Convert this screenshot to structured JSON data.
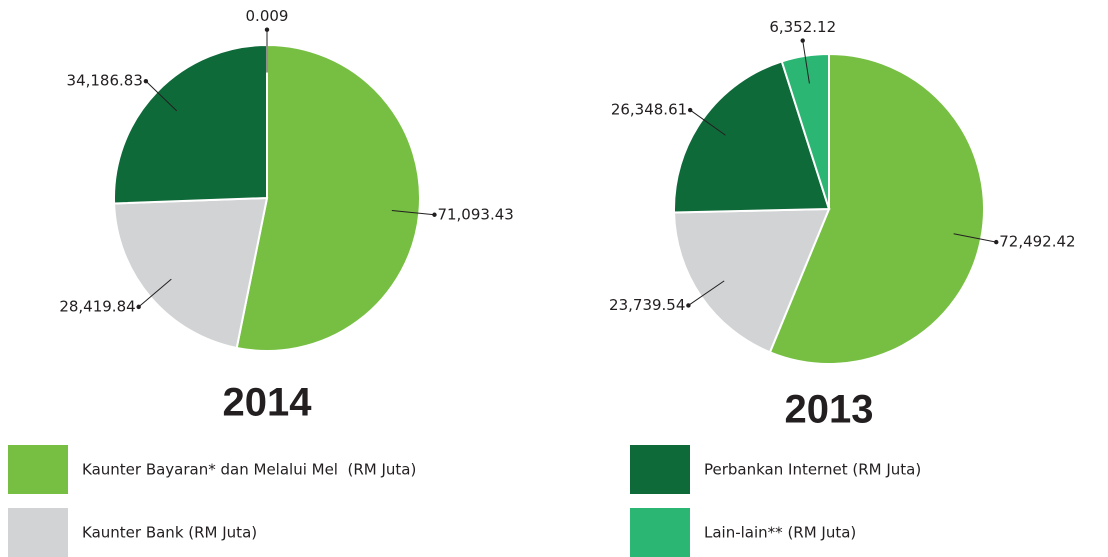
{
  "legend": [
    {
      "name": "Kaunter Bayaran* dan Melalui Mel  (RM Juta)",
      "color": "#76bf43"
    },
    {
      "name": "Kaunter Bank (RM Juta)",
      "color": "#d1d3d4"
    },
    {
      "name": "Perbankan Internet (RM Juta)",
      "color": "#0f6a3a"
    },
    {
      "name": "Lain-lain** (RM Juta)",
      "color": "#2bb673"
    }
  ],
  "chart_data": [
    {
      "type": "pie",
      "title": "2014",
      "values": [
        71093.43,
        28419.84,
        34186.83,
        0.009
      ],
      "value_labels": [
        "71,093.43",
        "28,419.84",
        "34,186.83",
        "0.009"
      ]
    },
    {
      "type": "pie",
      "title": "2013",
      "values": [
        72492.42,
        23739.54,
        26348.61,
        6352.12
      ],
      "value_labels": [
        "72,492.42",
        "23,739.54",
        "26,348.61",
        "6,352.12"
      ]
    }
  ]
}
